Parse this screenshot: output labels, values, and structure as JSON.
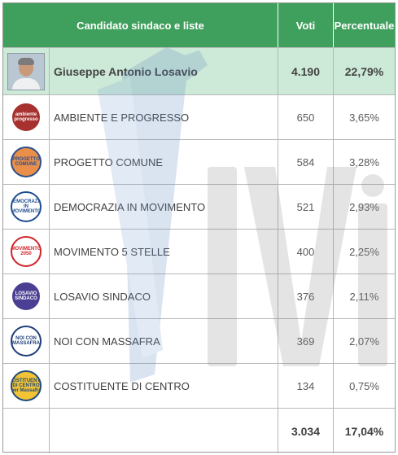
{
  "header": {
    "name_col": "Candidato sindaco e liste",
    "votes_col": "Voti",
    "pct_col": "Percentuale"
  },
  "candidate": {
    "name": "Giuseppe Antonio Losavio",
    "votes": "4.190",
    "pct": "22,79%"
  },
  "lists": [
    {
      "name": "AMBIENTE E PROGRESSO",
      "votes": "650",
      "pct": "3,65%",
      "logo_text": "ambiente progresso",
      "logo_bg": "#a6312f",
      "logo_fg": "#ffffff",
      "logo_icon": "ambiente-progresso-logo-icon"
    },
    {
      "name": "PROGETTO COMUNE",
      "votes": "584",
      "pct": "3,28%",
      "logo_text": "PROGETTO COMUNE",
      "logo_bg": "#e98f4a",
      "logo_fg": "#2d4f8c",
      "logo_icon": "progetto-comune-logo-icon"
    },
    {
      "name": "DEMOCRAZIA IN MOVIMENTO",
      "votes": "521",
      "pct": "2,93%",
      "logo_text": "DEMOCRAZIA IN MOVIMENTO",
      "logo_bg": "#ffffff",
      "logo_fg": "#1e4e8f",
      "logo_icon": "democrazia-movimento-logo-icon"
    },
    {
      "name": "MOVIMENTO 5 STELLE",
      "votes": "400",
      "pct": "2,25%",
      "logo_text": "MOVIMENTO 2050",
      "logo_bg": "#ffffff",
      "logo_fg": "#d2232a",
      "logo_icon": "movimento-5-stelle-logo-icon"
    },
    {
      "name": "LOSAVIO SINDACO",
      "votes": "376",
      "pct": "2,11%",
      "logo_text": "LOSAVIO SINDACO",
      "logo_bg": "#4b3f93",
      "logo_fg": "#ffffff",
      "logo_icon": "losavio-sindaco-logo-icon"
    },
    {
      "name": "NOI CON MASSAFRA",
      "votes": "369",
      "pct": "2,07%",
      "logo_text": "NOI CON MASSAFRA",
      "logo_bg": "#ffffff",
      "logo_fg": "#1f3e7a",
      "logo_icon": "noi-con-massafra-logo-icon"
    },
    {
      "name": "COSTITUENTE DI CENTRO",
      "votes": "134",
      "pct": "0,75%",
      "logo_text": "COSTITUENTE DI CENTRO per Massafra",
      "logo_bg": "#f2c335",
      "logo_fg": "#1f4a7a",
      "logo_icon": "costituente-centro-logo-icon"
    }
  ],
  "totals": {
    "votes": "3.034",
    "pct": "17,04%"
  },
  "watermark": {
    "text": "Vivi"
  },
  "colors": {
    "header_bg": "#3f9f5c",
    "candidate_bg": "#cde9d7",
    "watermark_blue": "#5b86c4",
    "watermark_gray": "#9a9a9a"
  }
}
